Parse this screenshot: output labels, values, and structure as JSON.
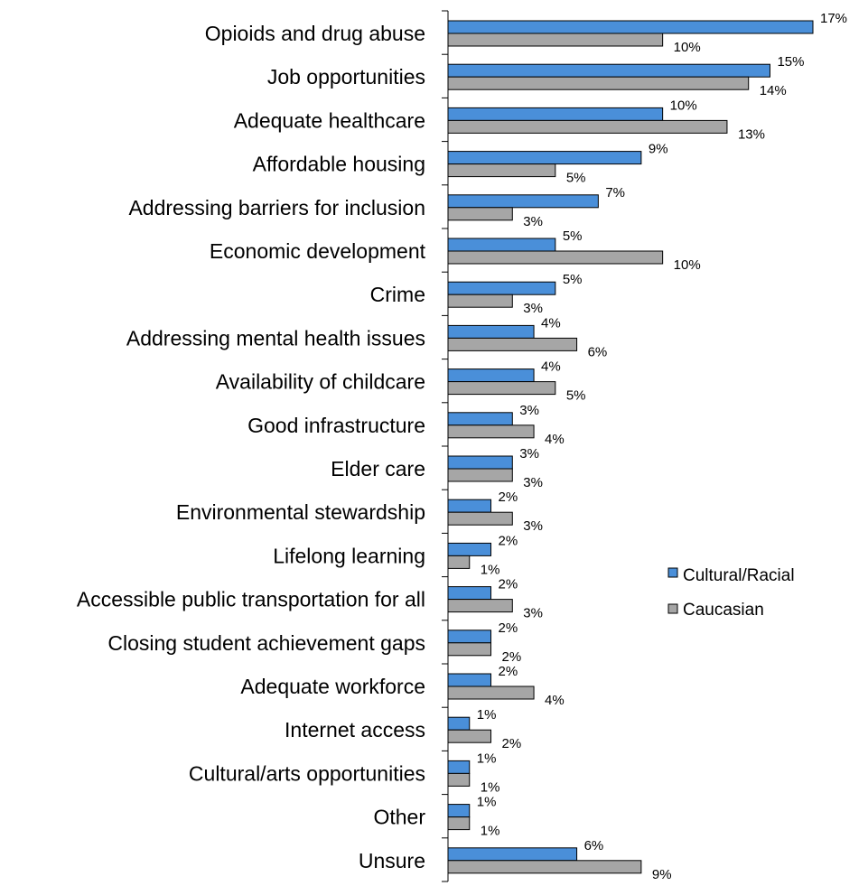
{
  "chart_data": {
    "type": "bar",
    "orientation": "horizontal",
    "title": "",
    "xlabel": "",
    "ylabel": "",
    "xlim": [
      0,
      17
    ],
    "grid": false,
    "legend_position": "right",
    "categories": [
      "Opioids and drug abuse",
      "Job opportunities",
      "Adequate healthcare",
      "Affordable housing",
      "Addressing barriers for inclusion",
      "Economic development",
      "Crime",
      "Addressing mental health issues",
      "Availability of childcare",
      "Good infrastructure",
      "Elder care",
      "Environmental stewardship",
      "Lifelong learning",
      "Accessible public transportation for all",
      "Closing student achievement gaps",
      "Adequate workforce",
      "Internet access",
      "Cultural/arts opportunities",
      "Other",
      "Unsure"
    ],
    "series": [
      {
        "name": "Cultural/Racial",
        "color": "#4a8fd9",
        "values": [
          17,
          15,
          10,
          9,
          7,
          5,
          5,
          4,
          4,
          3,
          3,
          2,
          2,
          2,
          2,
          2,
          1,
          1,
          1,
          6
        ],
        "labels": [
          "17%",
          "15%",
          "10%",
          "9%",
          "7%",
          "5%",
          "5%",
          "4%",
          "4%",
          "3%",
          "3%",
          "2%",
          "2%",
          "2%",
          "2%",
          "2%",
          "1%",
          "1%",
          "1%",
          "6%"
        ]
      },
      {
        "name": "Caucasian",
        "color": "#a6a6a6",
        "values": [
          10,
          14,
          13,
          5,
          3,
          10,
          3,
          6,
          5,
          4,
          3,
          3,
          1,
          3,
          2,
          4,
          2,
          1,
          1,
          9
        ],
        "labels": [
          "10%",
          "14%",
          "13%",
          "5%",
          "3%",
          "10%",
          "3%",
          "6%",
          "5%",
          "4%",
          "3%",
          "3%",
          "1%",
          "3%",
          "2%",
          "4%",
          "2%",
          "1%",
          "1%",
          "9%"
        ]
      }
    ]
  }
}
